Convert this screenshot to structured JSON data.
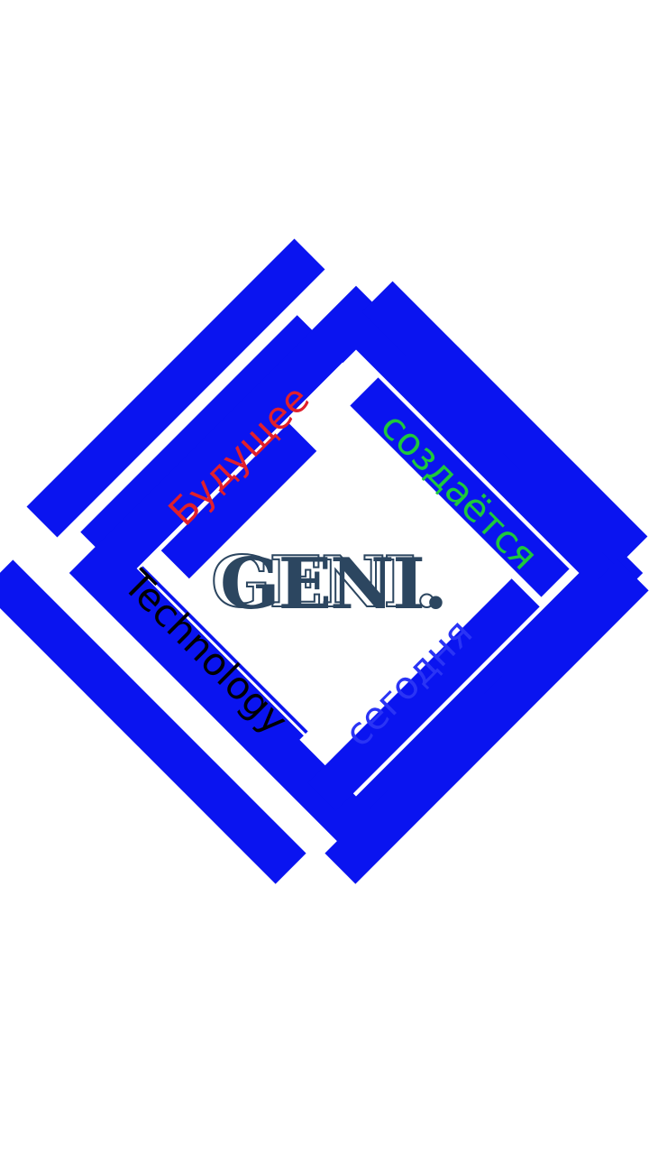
{
  "logo": {
    "center_text": "GENI.",
    "word_future": "Будущее",
    "word_created": "создаётся",
    "word_technology": "Technology",
    "word_today": "сегодня",
    "brand_color": "#0a14f0",
    "text_colors": {
      "future": "#e0202c",
      "created": "#1ec83c",
      "technology": "#000000",
      "today": "#2a34f5",
      "center": "#2c4660"
    }
  }
}
